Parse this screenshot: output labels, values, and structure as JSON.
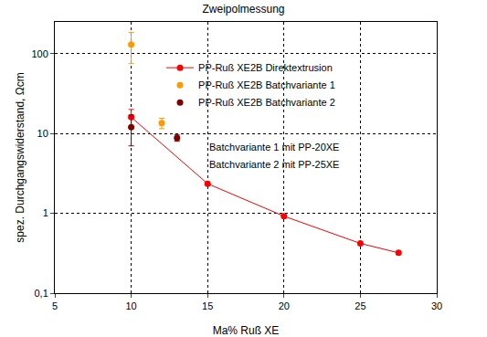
{
  "chart_data": {
    "type": "scatter",
    "title": "Zweipolmessung",
    "x_label": "Ma% Ruß XE",
    "y_label": "spez. Durchgangswiderstand, Ωcm",
    "log": "y",
    "grid": true,
    "legend": "top",
    "xlim": [
      5,
      30
    ],
    "xticks": [
      5,
      10,
      15,
      20,
      25,
      30
    ],
    "ylim": [
      0.1,
      250
    ],
    "yticks": [
      {
        "value": 0.1,
        "label": "0,1"
      },
      1,
      10,
      100
    ],
    "annotations": [
      "Batchvariante 1 mit PP-20XE",
      "Batchvariante 2 mit PP-25XE"
    ],
    "series": [
      {
        "name": "PP-Ruß XE2B Direktextrusion",
        "color": "#ff0000",
        "type": "line",
        "marker": "circle",
        "x": [
          10,
          15,
          20,
          25,
          27.5
        ],
        "values": [
          16,
          2.35,
          0.92,
          0.42,
          0.32
        ],
        "errors": [
          4,
          0,
          0,
          0,
          0
        ]
      },
      {
        "name": "PP-Ruß XE2B Batchvariante 1",
        "color": "#ff9900",
        "type": "scatter",
        "marker": "circle",
        "x": [
          10,
          12
        ],
        "values": [
          130,
          13.5
        ],
        "errors": [
          55,
          2
        ]
      },
      {
        "name": "PP-Ruß XE2B Batchvariante 2",
        "color": "#800000",
        "type": "scatter",
        "marker": "circle",
        "x": [
          10,
          13
        ],
        "values": [
          12,
          8.8
        ],
        "errors": [
          5,
          0.8
        ]
      }
    ]
  }
}
